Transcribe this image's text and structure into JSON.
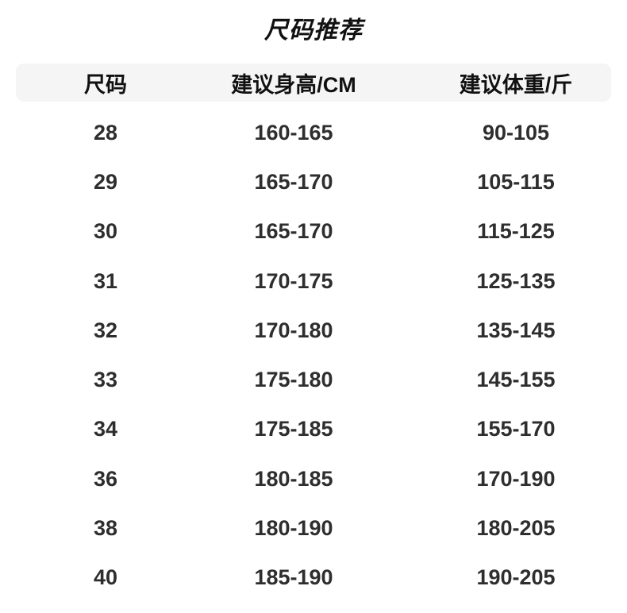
{
  "colors": {
    "page_bg": "#ffffff",
    "header_bar_bg": "#f5f5f5",
    "heading_text": "#111111",
    "body_text": "#2e2e2e"
  },
  "chart_data": {
    "type": "table",
    "title": "尺码推荐",
    "columns": [
      "尺码",
      "建议身高/CM",
      "建议体重/斤"
    ],
    "rows": [
      [
        "28",
        "160-165",
        "90-105"
      ],
      [
        "29",
        "165-170",
        "105-115"
      ],
      [
        "30",
        "165-170",
        "115-125"
      ],
      [
        "31",
        "170-175",
        "125-135"
      ],
      [
        "32",
        "170-180",
        "135-145"
      ],
      [
        "33",
        "175-180",
        "145-155"
      ],
      [
        "34",
        "175-185",
        "155-170"
      ],
      [
        "36",
        "180-185",
        "170-190"
      ],
      [
        "38",
        "180-190",
        "180-205"
      ],
      [
        "40",
        "185-190",
        "190-205"
      ]
    ],
    "layout": {
      "grid": "off",
      "header_style": "rounded-gray-bar",
      "align": "center"
    }
  }
}
